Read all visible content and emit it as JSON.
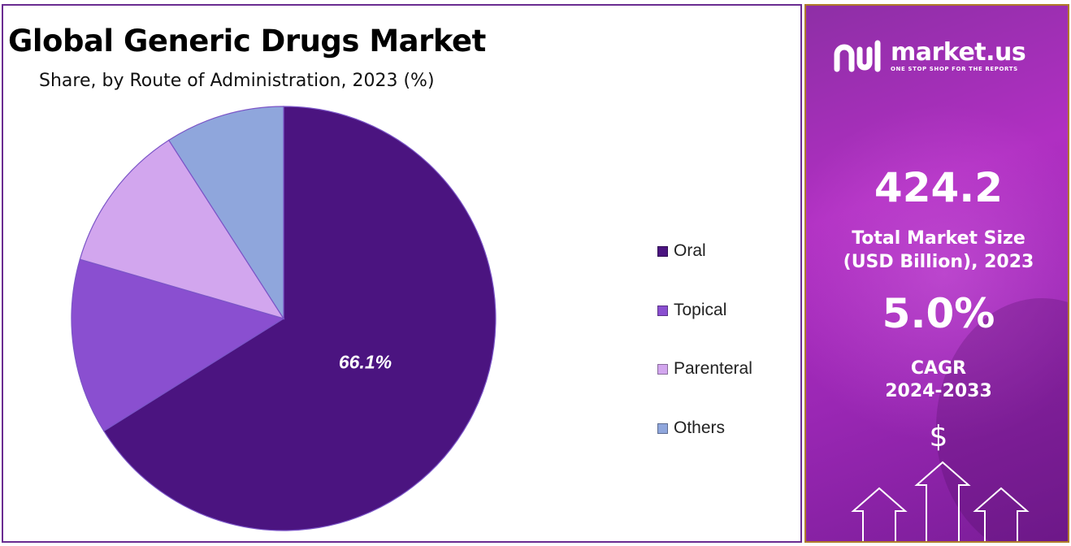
{
  "chart_data": {
    "type": "pie",
    "title": "Global Generic Drugs Market",
    "subtitle": "Share, by Route of Administration, 2023 (%)",
    "categories": [
      "Oral",
      "Topical",
      "Parenteral",
      "Others"
    ],
    "values": [
      66.1,
      13.4,
      11.4,
      9.1
    ],
    "colors": [
      "#4b1480",
      "#8a4fd0",
      "#d2a6ee",
      "#8fa6dc"
    ],
    "data_labels": [
      "66.1%",
      "",
      "",
      ""
    ],
    "legend_position": "right",
    "start_angle_deg": 0,
    "direction": "clockwise"
  },
  "sidebar": {
    "brand_name": "market.us",
    "brand_tagline": "ONE STOP SHOP FOR THE REPORTS",
    "market_size_value": "424.2",
    "market_size_label_line1": "Total Market Size",
    "market_size_label_line2": "(USD Billion), 2023",
    "cagr_value": "5.0%",
    "cagr_label_line1": "CAGR",
    "cagr_label_line2": "2024-2033",
    "currency_symbol": "$",
    "icon": "dollar-arrows-icon"
  }
}
